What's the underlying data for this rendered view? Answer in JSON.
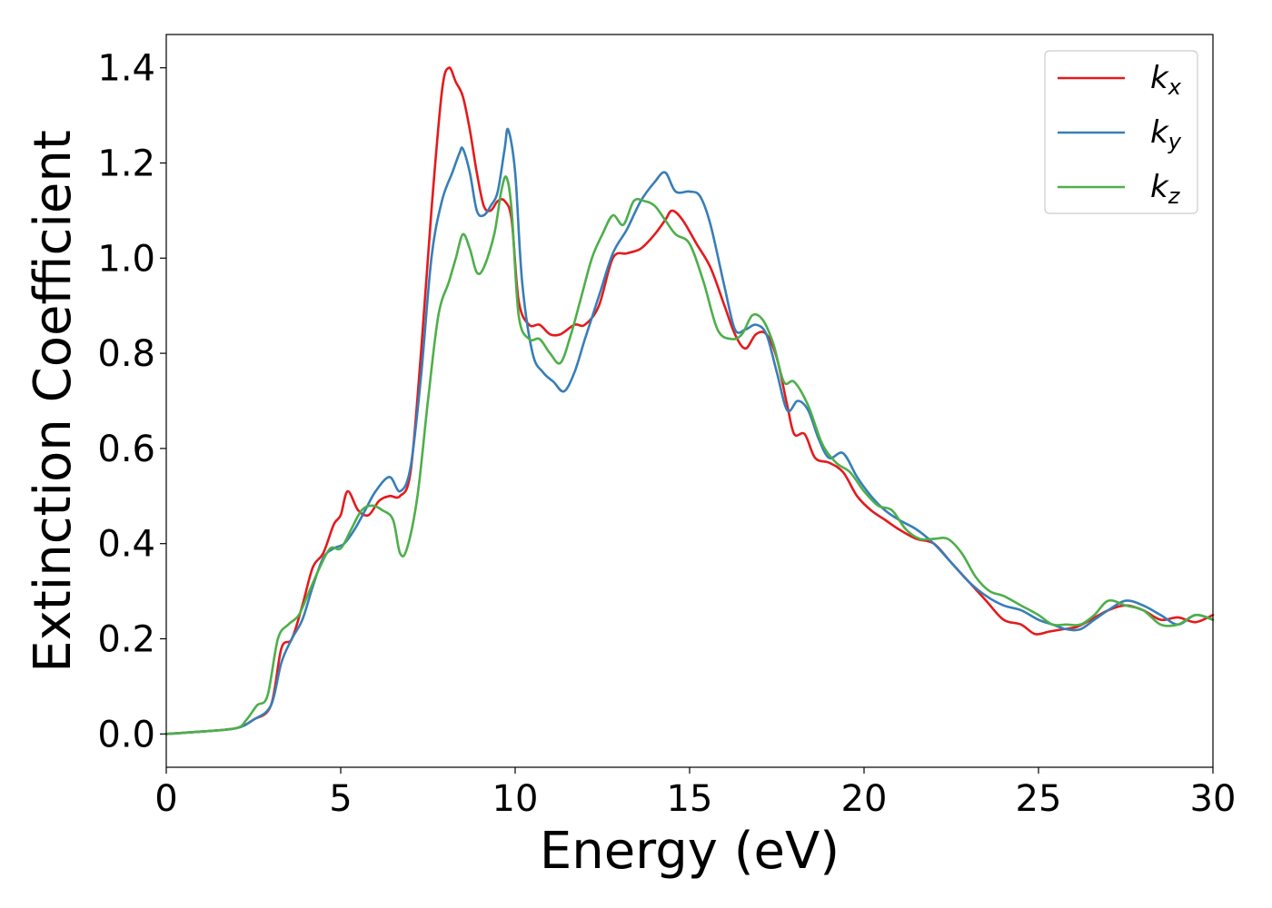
{
  "chart_data": {
    "type": "line",
    "title": "",
    "xlabel": "Energy (eV)",
    "ylabel": "Extinction Coefficient",
    "xlim": [
      0,
      30
    ],
    "ylim": [
      -0.07,
      1.47
    ],
    "xticks": [
      0,
      5,
      10,
      15,
      20,
      25,
      30
    ],
    "xtick_labels": [
      "0",
      "5",
      "10",
      "15",
      "20",
      "25",
      "30"
    ],
    "yticks": [
      0.0,
      0.2,
      0.4,
      0.6,
      0.8,
      1.0,
      1.2,
      1.4
    ],
    "ytick_labels": [
      "0.0",
      "0.2",
      "0.4",
      "0.6",
      "0.8",
      "1.0",
      "1.2",
      "1.4"
    ],
    "grid": false,
    "legend_position": "top-right",
    "series": [
      {
        "name": "kx",
        "label_base": "k",
        "label_sub": "x",
        "color": "#e41a1c",
        "x": [
          0,
          1,
          2,
          2.5,
          3,
          3.3,
          3.6,
          3.9,
          4.2,
          4.5,
          4.8,
          5.0,
          5.2,
          5.5,
          5.8,
          6.1,
          6.4,
          6.7,
          7.0,
          7.3,
          7.6,
          7.9,
          8.1,
          8.3,
          8.5,
          8.7,
          8.9,
          9.1,
          9.3,
          9.5,
          9.7,
          9.9,
          10.1,
          10.4,
          10.7,
          11.0,
          11.3,
          11.7,
          12.0,
          12.4,
          12.8,
          13.2,
          13.6,
          14.0,
          14.3,
          14.5,
          14.8,
          15.2,
          15.6,
          16.0,
          16.3,
          16.6,
          16.9,
          17.2,
          17.5,
          17.8,
          18.0,
          18.3,
          18.6,
          19.0,
          19.4,
          19.8,
          20.2,
          20.6,
          21.0,
          21.5,
          22.0,
          22.5,
          23.0,
          23.5,
          24.0,
          24.5,
          24.9,
          25.3,
          25.7,
          26.1,
          26.5,
          27.0,
          27.5,
          28.0,
          28.5,
          29.0,
          29.5,
          30.0
        ],
        "y": [
          0.0,
          0.005,
          0.012,
          0.03,
          0.06,
          0.18,
          0.2,
          0.27,
          0.35,
          0.38,
          0.44,
          0.46,
          0.51,
          0.47,
          0.46,
          0.49,
          0.5,
          0.5,
          0.55,
          0.8,
          1.1,
          1.35,
          1.4,
          1.37,
          1.34,
          1.27,
          1.18,
          1.11,
          1.1,
          1.12,
          1.12,
          1.08,
          0.91,
          0.86,
          0.86,
          0.84,
          0.84,
          0.86,
          0.86,
          0.9,
          1.0,
          1.01,
          1.02,
          1.05,
          1.08,
          1.1,
          1.08,
          1.03,
          0.98,
          0.9,
          0.84,
          0.81,
          0.84,
          0.84,
          0.79,
          0.69,
          0.63,
          0.63,
          0.58,
          0.57,
          0.55,
          0.5,
          0.47,
          0.45,
          0.43,
          0.41,
          0.4,
          0.36,
          0.32,
          0.28,
          0.24,
          0.23,
          0.21,
          0.215,
          0.22,
          0.225,
          0.24,
          0.26,
          0.27,
          0.26,
          0.24,
          0.245,
          0.235,
          0.25
        ]
      },
      {
        "name": "ky",
        "label_base": "k",
        "label_sub": "y",
        "color": "#377eb8",
        "x": [
          0,
          1,
          2,
          2.5,
          3,
          3.3,
          3.6,
          3.9,
          4.2,
          4.5,
          4.8,
          5.1,
          5.4,
          5.7,
          6.0,
          6.4,
          6.7,
          7.0,
          7.3,
          7.6,
          7.9,
          8.2,
          8.4,
          8.5,
          8.7,
          8.9,
          9.1,
          9.3,
          9.5,
          9.7,
          9.8,
          10.0,
          10.2,
          10.5,
          10.8,
          11.1,
          11.4,
          11.7,
          12.0,
          12.4,
          12.8,
          13.2,
          13.6,
          14.0,
          14.3,
          14.6,
          15.0,
          15.3,
          15.6,
          16.0,
          16.3,
          16.6,
          16.9,
          17.2,
          17.5,
          17.8,
          18.1,
          18.4,
          18.7,
          19.0,
          19.4,
          19.8,
          20.2,
          20.6,
          21.0,
          21.5,
          22.0,
          22.5,
          23.0,
          23.5,
          24.0,
          24.5,
          25.0,
          25.4,
          25.8,
          26.2,
          26.6,
          27.0,
          27.5,
          28.0,
          28.5,
          29.0,
          29.5,
          30.0
        ],
        "y": [
          0.0,
          0.005,
          0.012,
          0.03,
          0.06,
          0.15,
          0.2,
          0.24,
          0.31,
          0.37,
          0.39,
          0.4,
          0.43,
          0.47,
          0.51,
          0.54,
          0.51,
          0.56,
          0.75,
          1.0,
          1.12,
          1.18,
          1.22,
          1.23,
          1.18,
          1.1,
          1.09,
          1.11,
          1.14,
          1.23,
          1.27,
          1.18,
          0.95,
          0.8,
          0.76,
          0.74,
          0.72,
          0.76,
          0.83,
          0.92,
          1.01,
          1.06,
          1.12,
          1.16,
          1.18,
          1.14,
          1.14,
          1.13,
          1.07,
          0.94,
          0.85,
          0.85,
          0.86,
          0.84,
          0.76,
          0.68,
          0.7,
          0.68,
          0.62,
          0.58,
          0.59,
          0.54,
          0.5,
          0.47,
          0.45,
          0.43,
          0.4,
          0.36,
          0.32,
          0.29,
          0.27,
          0.26,
          0.24,
          0.23,
          0.22,
          0.22,
          0.24,
          0.26,
          0.28,
          0.27,
          0.25,
          0.23,
          0.25,
          0.24
        ]
      },
      {
        "name": "kz",
        "label_base": "k",
        "label_sub": "z",
        "color": "#4daf4a",
        "x": [
          0,
          1,
          2,
          2.3,
          2.6,
          2.9,
          3.2,
          3.5,
          3.8,
          4.1,
          4.4,
          4.7,
          5.0,
          5.3,
          5.6,
          5.9,
          6.2,
          6.5,
          6.7,
          6.9,
          7.2,
          7.5,
          7.8,
          8.1,
          8.3,
          8.5,
          8.7,
          8.9,
          9.1,
          9.4,
          9.6,
          9.75,
          9.9,
          10.1,
          10.4,
          10.7,
          11.0,
          11.3,
          11.6,
          11.9,
          12.2,
          12.5,
          12.8,
          13.1,
          13.4,
          13.7,
          14.0,
          14.3,
          14.6,
          15.0,
          15.4,
          15.8,
          16.2,
          16.5,
          16.8,
          17.1,
          17.4,
          17.7,
          18.0,
          18.4,
          18.8,
          19.2,
          19.6,
          20.0,
          20.4,
          20.8,
          21.2,
          21.6,
          22.0,
          22.4,
          22.8,
          23.2,
          23.6,
          24.0,
          24.5,
          25.0,
          25.4,
          25.8,
          26.2,
          26.6,
          27.0,
          27.5,
          28.0,
          28.5,
          29.0,
          29.5,
          30.0
        ],
        "y": [
          0.0,
          0.005,
          0.012,
          0.03,
          0.06,
          0.08,
          0.2,
          0.23,
          0.25,
          0.3,
          0.35,
          0.39,
          0.39,
          0.43,
          0.47,
          0.48,
          0.47,
          0.45,
          0.38,
          0.39,
          0.5,
          0.7,
          0.88,
          0.95,
          1.0,
          1.05,
          1.02,
          0.97,
          0.98,
          1.05,
          1.14,
          1.17,
          1.1,
          0.88,
          0.83,
          0.83,
          0.8,
          0.78,
          0.84,
          0.92,
          1.0,
          1.05,
          1.09,
          1.07,
          1.12,
          1.12,
          1.11,
          1.08,
          1.05,
          1.03,
          0.95,
          0.85,
          0.83,
          0.84,
          0.88,
          0.87,
          0.82,
          0.74,
          0.74,
          0.69,
          0.61,
          0.57,
          0.55,
          0.51,
          0.48,
          0.47,
          0.43,
          0.41,
          0.41,
          0.41,
          0.38,
          0.33,
          0.3,
          0.29,
          0.27,
          0.25,
          0.23,
          0.23,
          0.23,
          0.25,
          0.28,
          0.27,
          0.26,
          0.23,
          0.23,
          0.25,
          0.24
        ]
      }
    ]
  }
}
